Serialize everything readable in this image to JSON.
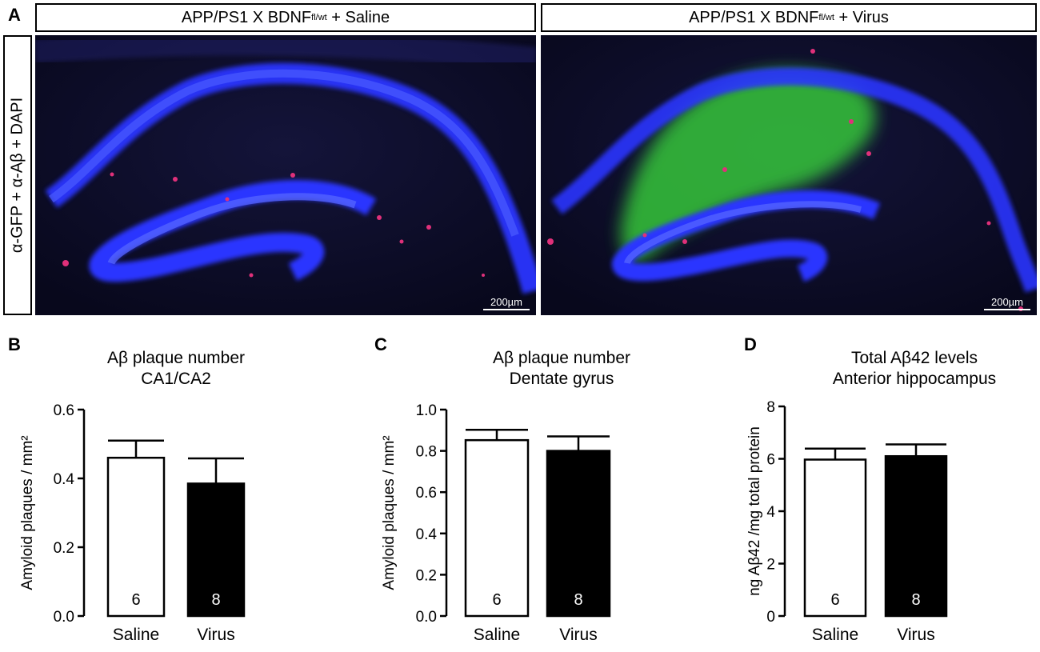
{
  "panel_a": {
    "letter": "A",
    "left_header": {
      "prefix": "APP/PS1 X BDNF",
      "sup": "fl/wt",
      "suffix": " + Saline"
    },
    "right_header": {
      "prefix": "APP/PS1 X BDNF",
      "sup": "fl/wt",
      "suffix": " + Virus"
    },
    "side_label": "α-GFP + α-Aβ + DAPI",
    "scalebar_left": "200µm",
    "scalebar_right": "200µm",
    "colors": {
      "dapi": "#2b3cff",
      "gfp": "#37d13a",
      "abeta": "#e0307a",
      "background": "#050512"
    }
  },
  "chart_data": [
    {
      "type": "bar",
      "panel": "B",
      "title": [
        "Aβ plaque number",
        "CA1/CA2"
      ],
      "xlabel": "",
      "ylabel": "Amyloid plaques /  mm²",
      "categories": [
        "Saline",
        "Virus"
      ],
      "values": [
        0.46,
        0.385
      ],
      "errors": [
        0.05,
        0.073
      ],
      "n": [
        "6",
        "8"
      ],
      "bar_fills": [
        "#ffffff",
        "#000000"
      ],
      "ylim": [
        0,
        0.6
      ],
      "yticks": [
        0.0,
        0.2,
        0.4,
        0.6
      ],
      "ytick_labels": [
        "0.0",
        "0.2",
        "0.4",
        "0.6"
      ]
    },
    {
      "type": "bar",
      "panel": "C",
      "title": [
        "Aβ plaque number",
        "Dentate gyrus"
      ],
      "xlabel": "",
      "ylabel": "Amyloid plaques /  mm²",
      "categories": [
        "Saline",
        "Virus"
      ],
      "values": [
        0.852,
        0.8
      ],
      "errors": [
        0.05,
        0.07
      ],
      "n": [
        "6",
        "8"
      ],
      "bar_fills": [
        "#ffffff",
        "#000000"
      ],
      "ylim": [
        0,
        1.0
      ],
      "yticks": [
        0.0,
        0.2,
        0.4,
        0.6,
        0.8,
        1.0
      ],
      "ytick_labels": [
        "0.0",
        "0.2",
        "0.4",
        "0.6",
        "0.8",
        "1.0"
      ]
    },
    {
      "type": "bar",
      "panel": "D",
      "title": [
        "Total Aβ42 levels",
        "Anterior hippocampus"
      ],
      "xlabel": "",
      "ylabel": "ng Aβ42 /mg total protein",
      "categories": [
        "Saline",
        "Virus"
      ],
      "values": [
        5.97,
        6.1
      ],
      "errors": [
        0.42,
        0.45
      ],
      "n": [
        "6",
        "8"
      ],
      "bar_fills": [
        "#ffffff",
        "#000000"
      ],
      "ylim": [
        0,
        8
      ],
      "yticks": [
        0,
        2,
        4,
        6,
        8
      ],
      "ytick_labels": [
        "0",
        "2",
        "4",
        "6",
        "8"
      ]
    }
  ]
}
